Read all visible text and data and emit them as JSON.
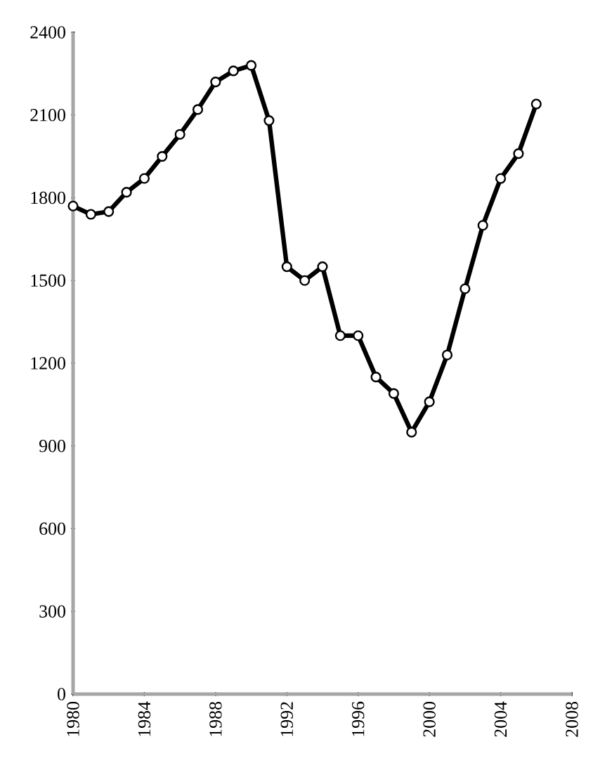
{
  "chart_data": {
    "type": "line",
    "x": [
      1980,
      1981,
      1982,
      1983,
      1984,
      1985,
      1986,
      1987,
      1988,
      1989,
      1990,
      1991,
      1992,
      1993,
      1994,
      1995,
      1996,
      1997,
      1998,
      1999,
      2000,
      2001,
      2002,
      2003,
      2004,
      2005,
      2006
    ],
    "values": [
      1770,
      1740,
      1750,
      1820,
      1870,
      1950,
      2030,
      2120,
      2220,
      2260,
      2280,
      2080,
      1550,
      1500,
      1550,
      1300,
      1300,
      1150,
      1090,
      950,
      1060,
      1230,
      1470,
      1700,
      1870,
      1960,
      2140
    ],
    "color": "#000000",
    "marker": "circle",
    "line_style": "solid",
    "grid": true,
    "xlim": [
      1980,
      2008
    ],
    "xticks": [
      1980,
      1984,
      1988,
      1992,
      1996,
      2000,
      2004,
      2008
    ],
    "ylim": [
      0,
      2400
    ],
    "yticks": [
      0,
      300,
      600,
      900,
      1200,
      1500,
      1800,
      2100,
      2400
    ]
  }
}
